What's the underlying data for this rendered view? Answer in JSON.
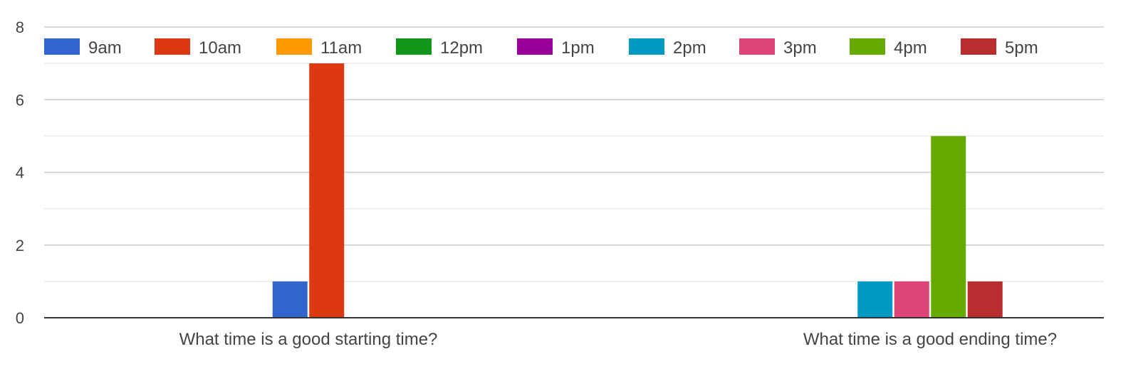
{
  "chart_data": {
    "type": "bar",
    "categories": [
      "What time is a good starting time?",
      "What time is a good ending time?"
    ],
    "series": [
      {
        "name": "9am",
        "color": "#3366cc",
        "values": [
          1,
          0
        ]
      },
      {
        "name": "10am",
        "color": "#dc3912",
        "values": [
          7,
          0
        ]
      },
      {
        "name": "11am",
        "color": "#ff9900",
        "values": [
          0,
          0
        ]
      },
      {
        "name": "12pm",
        "color": "#109618",
        "values": [
          0,
          0
        ]
      },
      {
        "name": "1pm",
        "color": "#990099",
        "values": [
          0,
          0
        ]
      },
      {
        "name": "2pm",
        "color": "#0099c6",
        "values": [
          0,
          1
        ]
      },
      {
        "name": "3pm",
        "color": "#dd4477",
        "values": [
          0,
          1
        ]
      },
      {
        "name": "4pm",
        "color": "#66aa00",
        "values": [
          0,
          5
        ]
      },
      {
        "name": "5pm",
        "color": "#b82e2e",
        "values": [
          0,
          1
        ]
      }
    ],
    "ylim": [
      0,
      8
    ],
    "yticks": [
      "0",
      "2",
      "4",
      "6",
      "8"
    ],
    "grid": true,
    "legend_position": "top"
  }
}
